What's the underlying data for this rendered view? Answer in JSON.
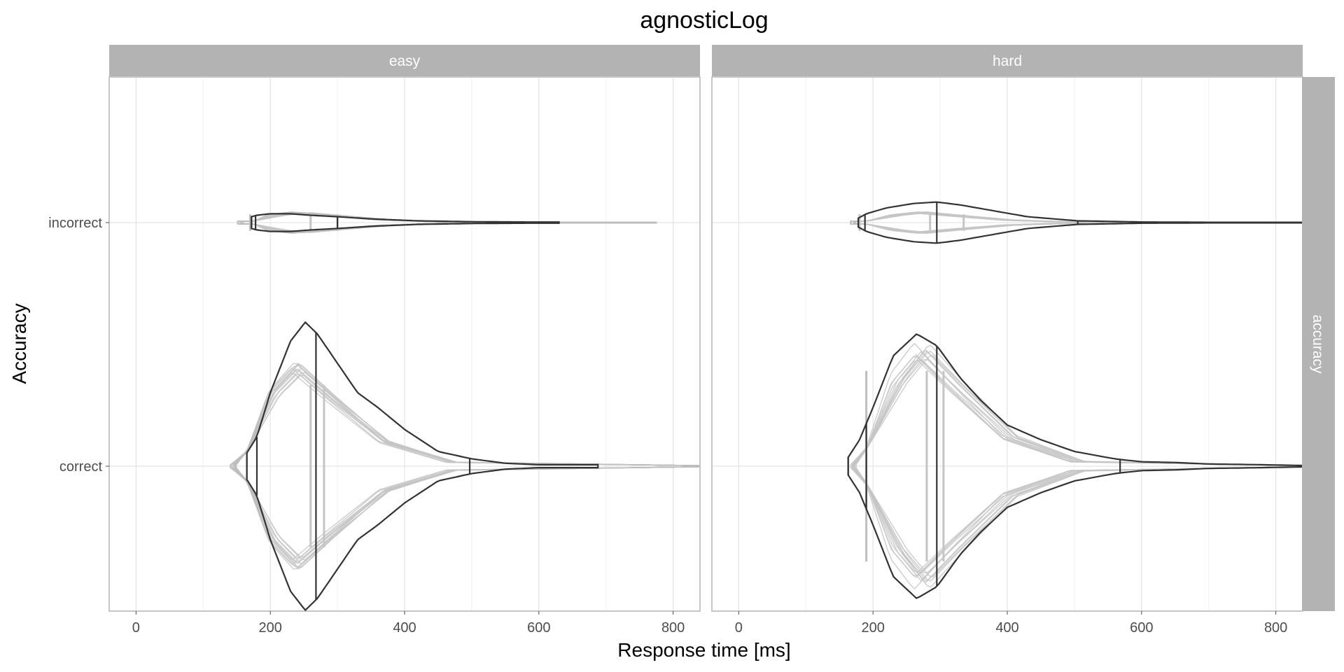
{
  "chart_data": {
    "type": "violin",
    "title": "agnosticLog",
    "xlabel": "Response time [ms]",
    "ylabel": "Accuracy",
    "facet_row_label": "accuracy",
    "facets": [
      "easy",
      "hard"
    ],
    "categories": [
      "incorrect",
      "correct"
    ],
    "xlim": [
      -40,
      840
    ],
    "xticks": [
      0,
      200,
      400,
      600,
      800
    ],
    "grid": true,
    "colors": {
      "observed": "#333333",
      "posterior_draws": "#bdbdbd",
      "strip": "#b3b3b3",
      "panel_border": "#b3b3b3",
      "grid": "#e3e3e3"
    },
    "series": [
      {
        "facet": "easy",
        "category": "incorrect",
        "observed": {
          "x": [
            172,
            180,
            200,
            230,
            260,
            300,
            350,
            420,
            500,
            580,
            630
          ],
          "half_width": [
            0.04,
            0.05,
            0.06,
            0.06,
            0.05,
            0.04,
            0.025,
            0.012,
            0.006,
            0.004,
            0.004
          ],
          "quantiles": [
            172,
            178,
            300
          ]
        },
        "draws": {
          "x_min": 150,
          "x_max": 775,
          "peak_x": 245,
          "peak_half_width": 0.07,
          "quantiles": [
            170,
            260,
            300
          ]
        }
      },
      {
        "facet": "easy",
        "category": "correct",
        "observed": {
          "x": [
            165,
            180,
            200,
            230,
            252,
            270,
            300,
            330,
            360,
            400,
            450,
            500,
            550,
            600,
            650,
            688
          ],
          "half_width": [
            0.09,
            0.2,
            0.5,
            0.85,
            0.98,
            0.9,
            0.7,
            0.5,
            0.4,
            0.25,
            0.1,
            0.05,
            0.02,
            0.01,
            0.01,
            0.01
          ],
          "quantiles": [
            165,
            180,
            268,
            497
          ]
        },
        "draws": {
          "x_min": 140,
          "x_max": 840,
          "peak_x": 240,
          "peak_half_width": 0.69,
          "quantiles": [
            260,
            280
          ]
        }
      },
      {
        "facet": "hard",
        "category": "incorrect",
        "observed": {
          "x": [
            178,
            190,
            220,
            260,
            295,
            330,
            380,
            430,
            505,
            600,
            700,
            840
          ],
          "half_width": [
            0.03,
            0.06,
            0.1,
            0.13,
            0.14,
            0.12,
            0.08,
            0.04,
            0.012,
            0.004,
            0.002,
            0.002
          ],
          "quantiles": [
            178,
            188,
            295,
            505
          ]
        },
        "draws": {
          "x_min": 165,
          "x_max": 840,
          "peak_x": 270,
          "peak_half_width": 0.07,
          "quantiles": [
            180,
            285,
            335
          ]
        }
      },
      {
        "facet": "hard",
        "category": "correct",
        "observed": {
          "x": [
            163,
            180,
            200,
            230,
            265,
            295,
            330,
            360,
            400,
            450,
            500,
            560,
            600,
            650,
            700,
            780,
            840
          ],
          "half_width": [
            0.06,
            0.18,
            0.4,
            0.75,
            0.9,
            0.82,
            0.6,
            0.45,
            0.28,
            0.18,
            0.1,
            0.05,
            0.03,
            0.025,
            0.015,
            0.01,
            0.005
          ],
          "quantiles": [
            163,
            190,
            295,
            568
          ]
        },
        "draws": {
          "x_min": 165,
          "x_max": 840,
          "peak_x": 275,
          "peak_half_width": 0.81,
          "quantiles": [
            190,
            280,
            305
          ]
        }
      }
    ]
  }
}
